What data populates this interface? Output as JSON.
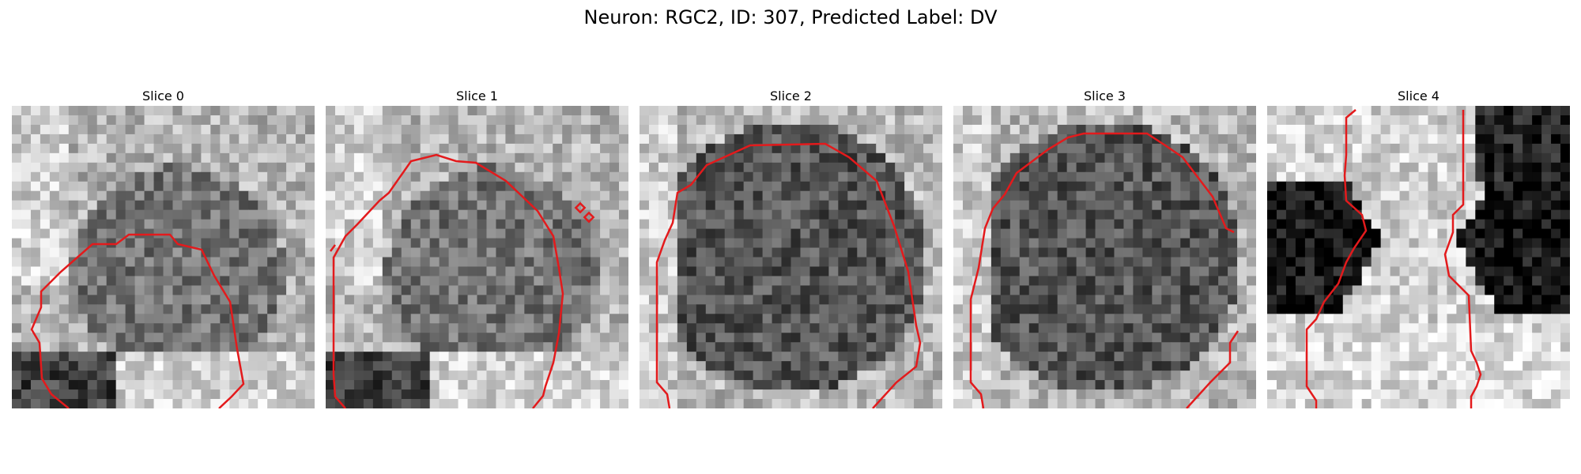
{
  "figure": {
    "title": "Neuron: RGC2, ID: 307, Predicted Label: DV"
  },
  "panels": [
    {
      "title": "Slice 0",
      "style": "blob",
      "contour_color": "#e31a1c"
    },
    {
      "title": "Slice 1",
      "style": "blob",
      "contour_color": "#e31a1c"
    },
    {
      "title": "Slice 2",
      "style": "dark-round",
      "contour_color": "#e31a1c"
    },
    {
      "title": "Slice 3",
      "style": "dark-round",
      "contour_color": "#e31a1c"
    },
    {
      "title": "Slice 4",
      "style": "hourglass",
      "contour_color": "#e31a1c"
    }
  ],
  "colormap": "gray"
}
